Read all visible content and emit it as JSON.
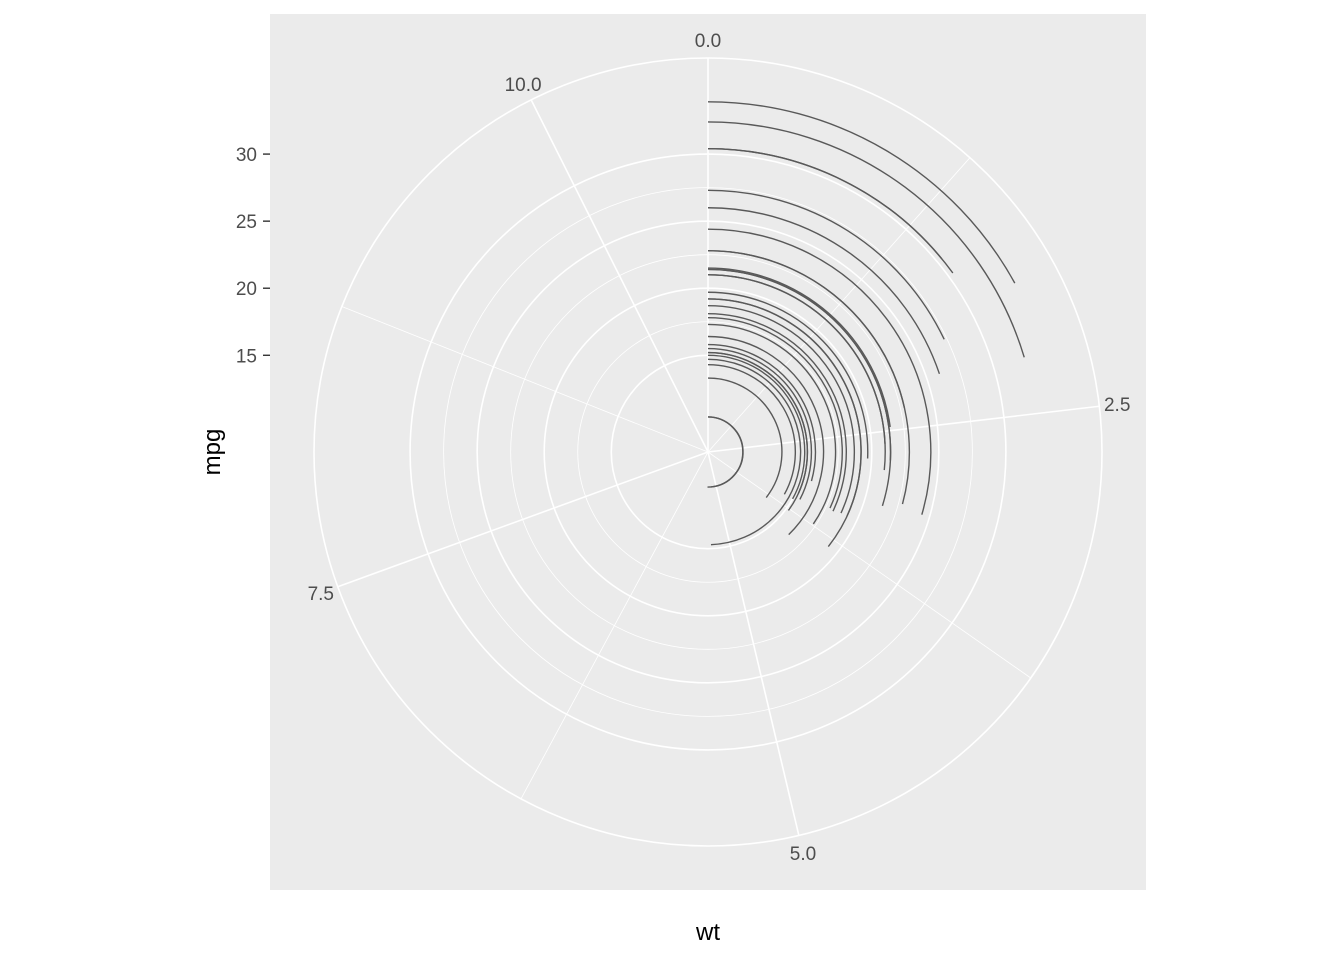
{
  "chart_data": {
    "type": "line",
    "coord": "polar",
    "geom": "segment-arcs",
    "xlabel": "wt",
    "ylabel": "mpg",
    "x_axis": {
      "theta_range": [
        0,
        10.8
      ],
      "ticks": [
        0.0,
        2.5,
        5.0,
        7.5,
        10.0
      ],
      "tick_labels": [
        "0.0",
        "2.5",
        "5.0",
        "7.5",
        "10.0"
      ]
    },
    "y_axis": {
      "r_range": [
        10.4,
        33.9
      ],
      "ticks": [
        15,
        20,
        25,
        30
      ],
      "tick_labels": [
        "15",
        "20",
        "25",
        "30"
      ]
    },
    "grid": true,
    "series": [
      {
        "x_start": [
          0,
          0,
          0,
          0,
          0,
          0,
          0,
          0,
          0,
          0,
          0,
          0,
          0,
          0,
          0,
          0,
          0,
          0,
          0,
          0,
          0,
          0,
          0,
          0,
          0,
          0,
          0,
          0,
          0,
          0,
          0,
          0
        ],
        "x_end": [
          2.62,
          2.875,
          2.32,
          3.215,
          3.44,
          3.46,
          3.57,
          3.19,
          3.15,
          3.44,
          3.44,
          4.07,
          3.73,
          3.78,
          5.25,
          5.424,
          5.345,
          2.2,
          1.615,
          1.835,
          2.465,
          3.52,
          3.435,
          3.84,
          3.845,
          1.935,
          2.14,
          1.513,
          3.17,
          2.77,
          3.57,
          2.78
        ],
        "y": [
          21.0,
          21.0,
          22.8,
          21.4,
          18.7,
          18.1,
          14.3,
          24.4,
          22.8,
          19.2,
          17.8,
          16.4,
          17.3,
          15.2,
          10.4,
          10.4,
          14.7,
          32.4,
          30.4,
          33.9,
          21.5,
          15.5,
          15.2,
          13.3,
          19.2,
          27.3,
          26.0,
          30.4,
          15.8,
          19.7,
          15.0,
          21.4
        ]
      }
    ]
  },
  "colors": {
    "panel_bg": "#ebebeb",
    "grid": "#ffffff",
    "segment": "#595959",
    "tick": "#333333"
  }
}
